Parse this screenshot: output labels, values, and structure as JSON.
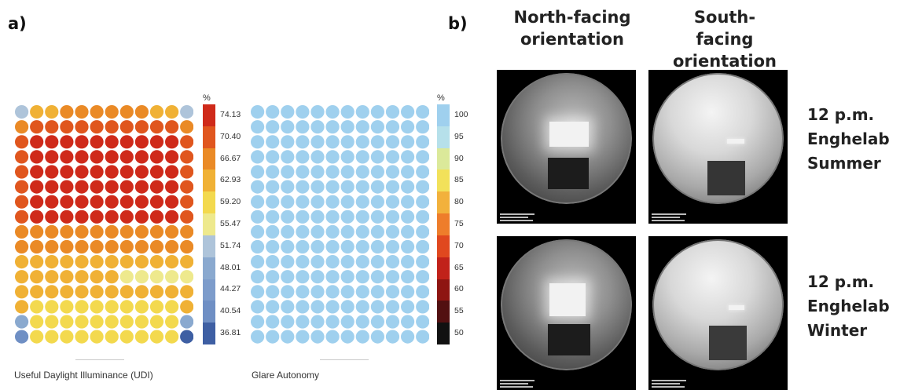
{
  "panel_a": {
    "label": "a)",
    "udi": {
      "caption": "Useful Daylight Illuminance (UDI)",
      "unit": "%",
      "ticks": [
        "74.13",
        "70.40",
        "66.67",
        "62.93",
        "59.20",
        "55.47",
        "51.74",
        "48.01",
        "44.27",
        "40.54",
        "36.81"
      ],
      "colors": {
        "red": "#cf2a1a",
        "orange_red": "#e0561e",
        "orange": "#ea8a26",
        "amber": "#f0b135",
        "yellow": "#f3d94e",
        "pale_yellow": "#eee98d",
        "light_blue": "#aec4da",
        "blue": "#8aa9cf",
        "mid_blue": "#6f8fc4",
        "deep_blue": "#3e5fa3"
      }
    },
    "ga": {
      "caption": "Glare Autonomy",
      "unit": "%",
      "ticks": [
        "100",
        "95",
        "90",
        "85",
        "80",
        "75",
        "70",
        "65",
        "60",
        "55",
        "50"
      ],
      "dot_color": "#9fd0ee"
    }
  },
  "panel_b": {
    "label": "b)",
    "columns": [
      "North-facing orientation",
      "South-facing orientation"
    ],
    "rows": [
      {
        "label": "12 p.m. Enghelab Summer"
      },
      {
        "label": "12 p.m. Enghelab Winter"
      }
    ]
  }
}
